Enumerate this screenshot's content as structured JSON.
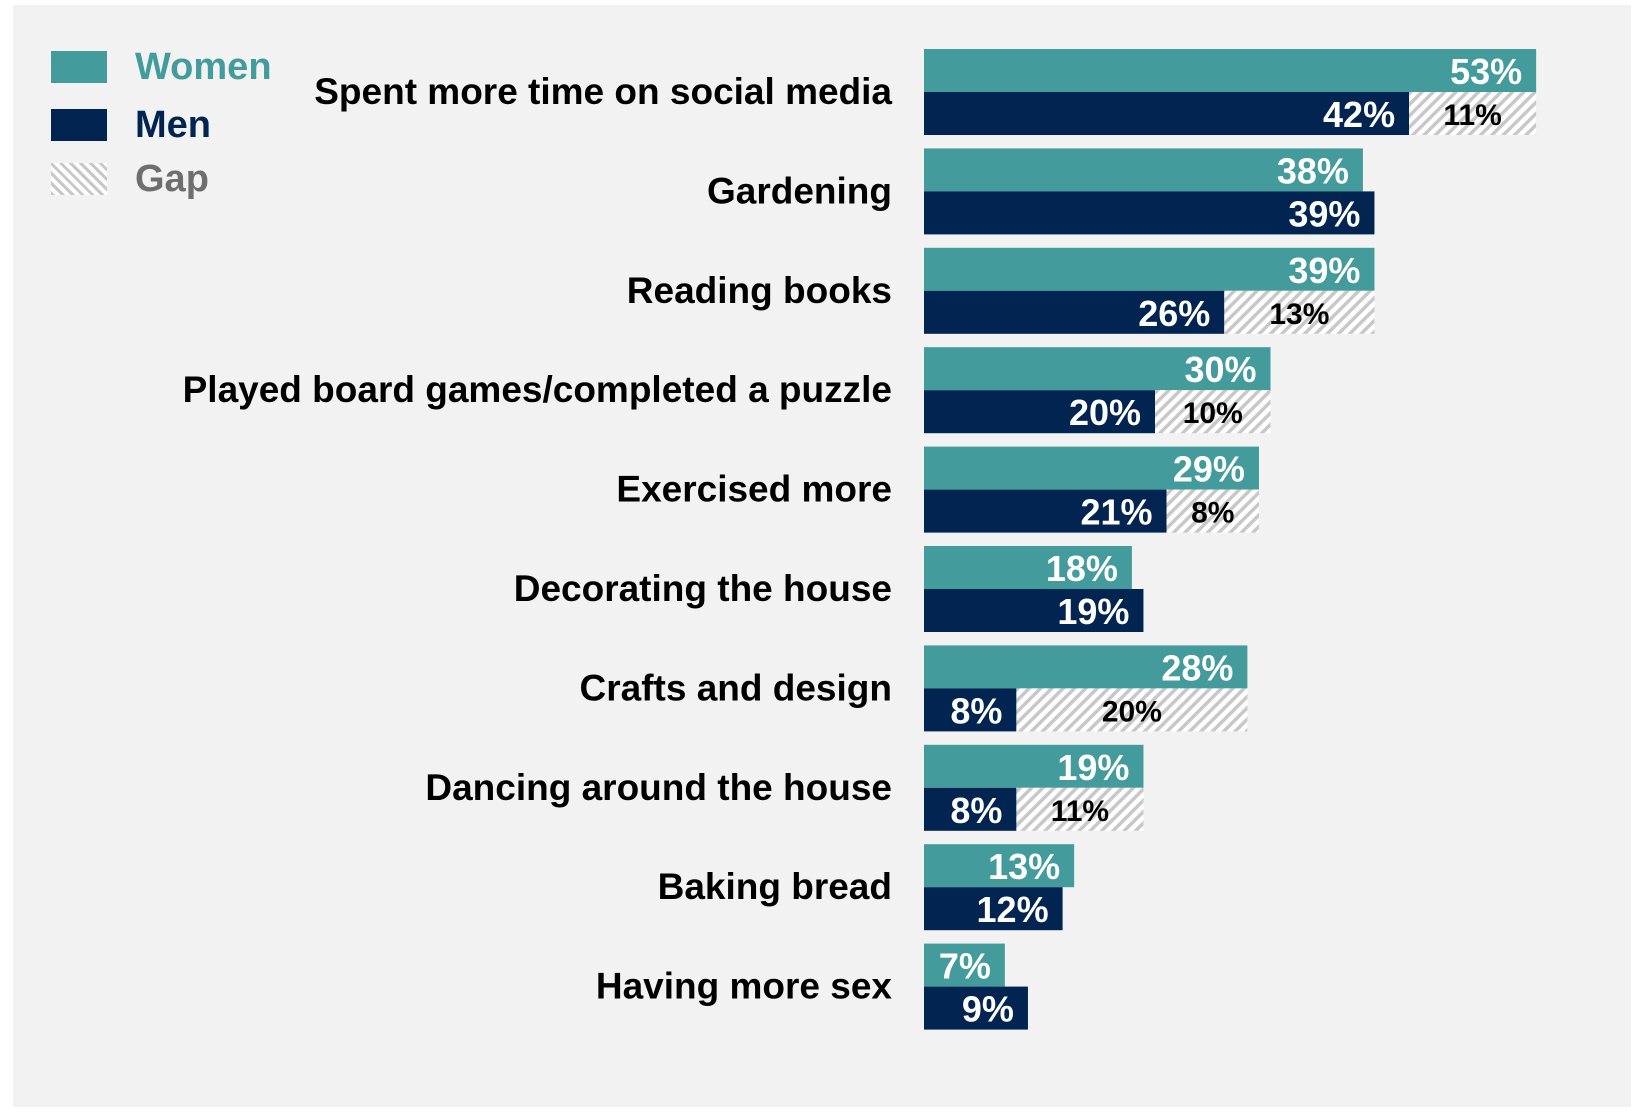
{
  "colors": {
    "women": "#439b9b",
    "men": "#012451",
    "gap_stripe": "#c8c8c8",
    "background": "#f2f2f2"
  },
  "legend": [
    {
      "key": "women",
      "label": "Women",
      "color": "#439b9b",
      "pattern": "solid"
    },
    {
      "key": "men",
      "label": "Men",
      "color": "#012451",
      "pattern": "solid"
    },
    {
      "key": "gap",
      "label": "Gap",
      "color": "#6e6e6e",
      "pattern": "hatched"
    }
  ],
  "chart_data": {
    "type": "bar",
    "orientation": "horizontal",
    "categories": [
      "Spent more time on social media",
      "Gardening",
      "Reading books",
      "Played board games/completed a puzzle",
      "Exercised more",
      "Decorating the house",
      "Crafts and design",
      "Dancing around the house",
      "Baking bread",
      "Having more sex"
    ],
    "series": [
      {
        "name": "Women",
        "values": [
          53,
          38,
          39,
          30,
          29,
          18,
          28,
          19,
          13,
          7
        ]
      },
      {
        "name": "Men",
        "values": [
          42,
          39,
          26,
          20,
          21,
          19,
          8,
          8,
          12,
          9
        ]
      },
      {
        "name": "Gap",
        "values": [
          11,
          null,
          13,
          10,
          8,
          null,
          20,
          11,
          null,
          null
        ]
      }
    ],
    "value_suffix": "%",
    "xlim": [
      0,
      53
    ],
    "grid": false,
    "legend_position": "top-left"
  }
}
